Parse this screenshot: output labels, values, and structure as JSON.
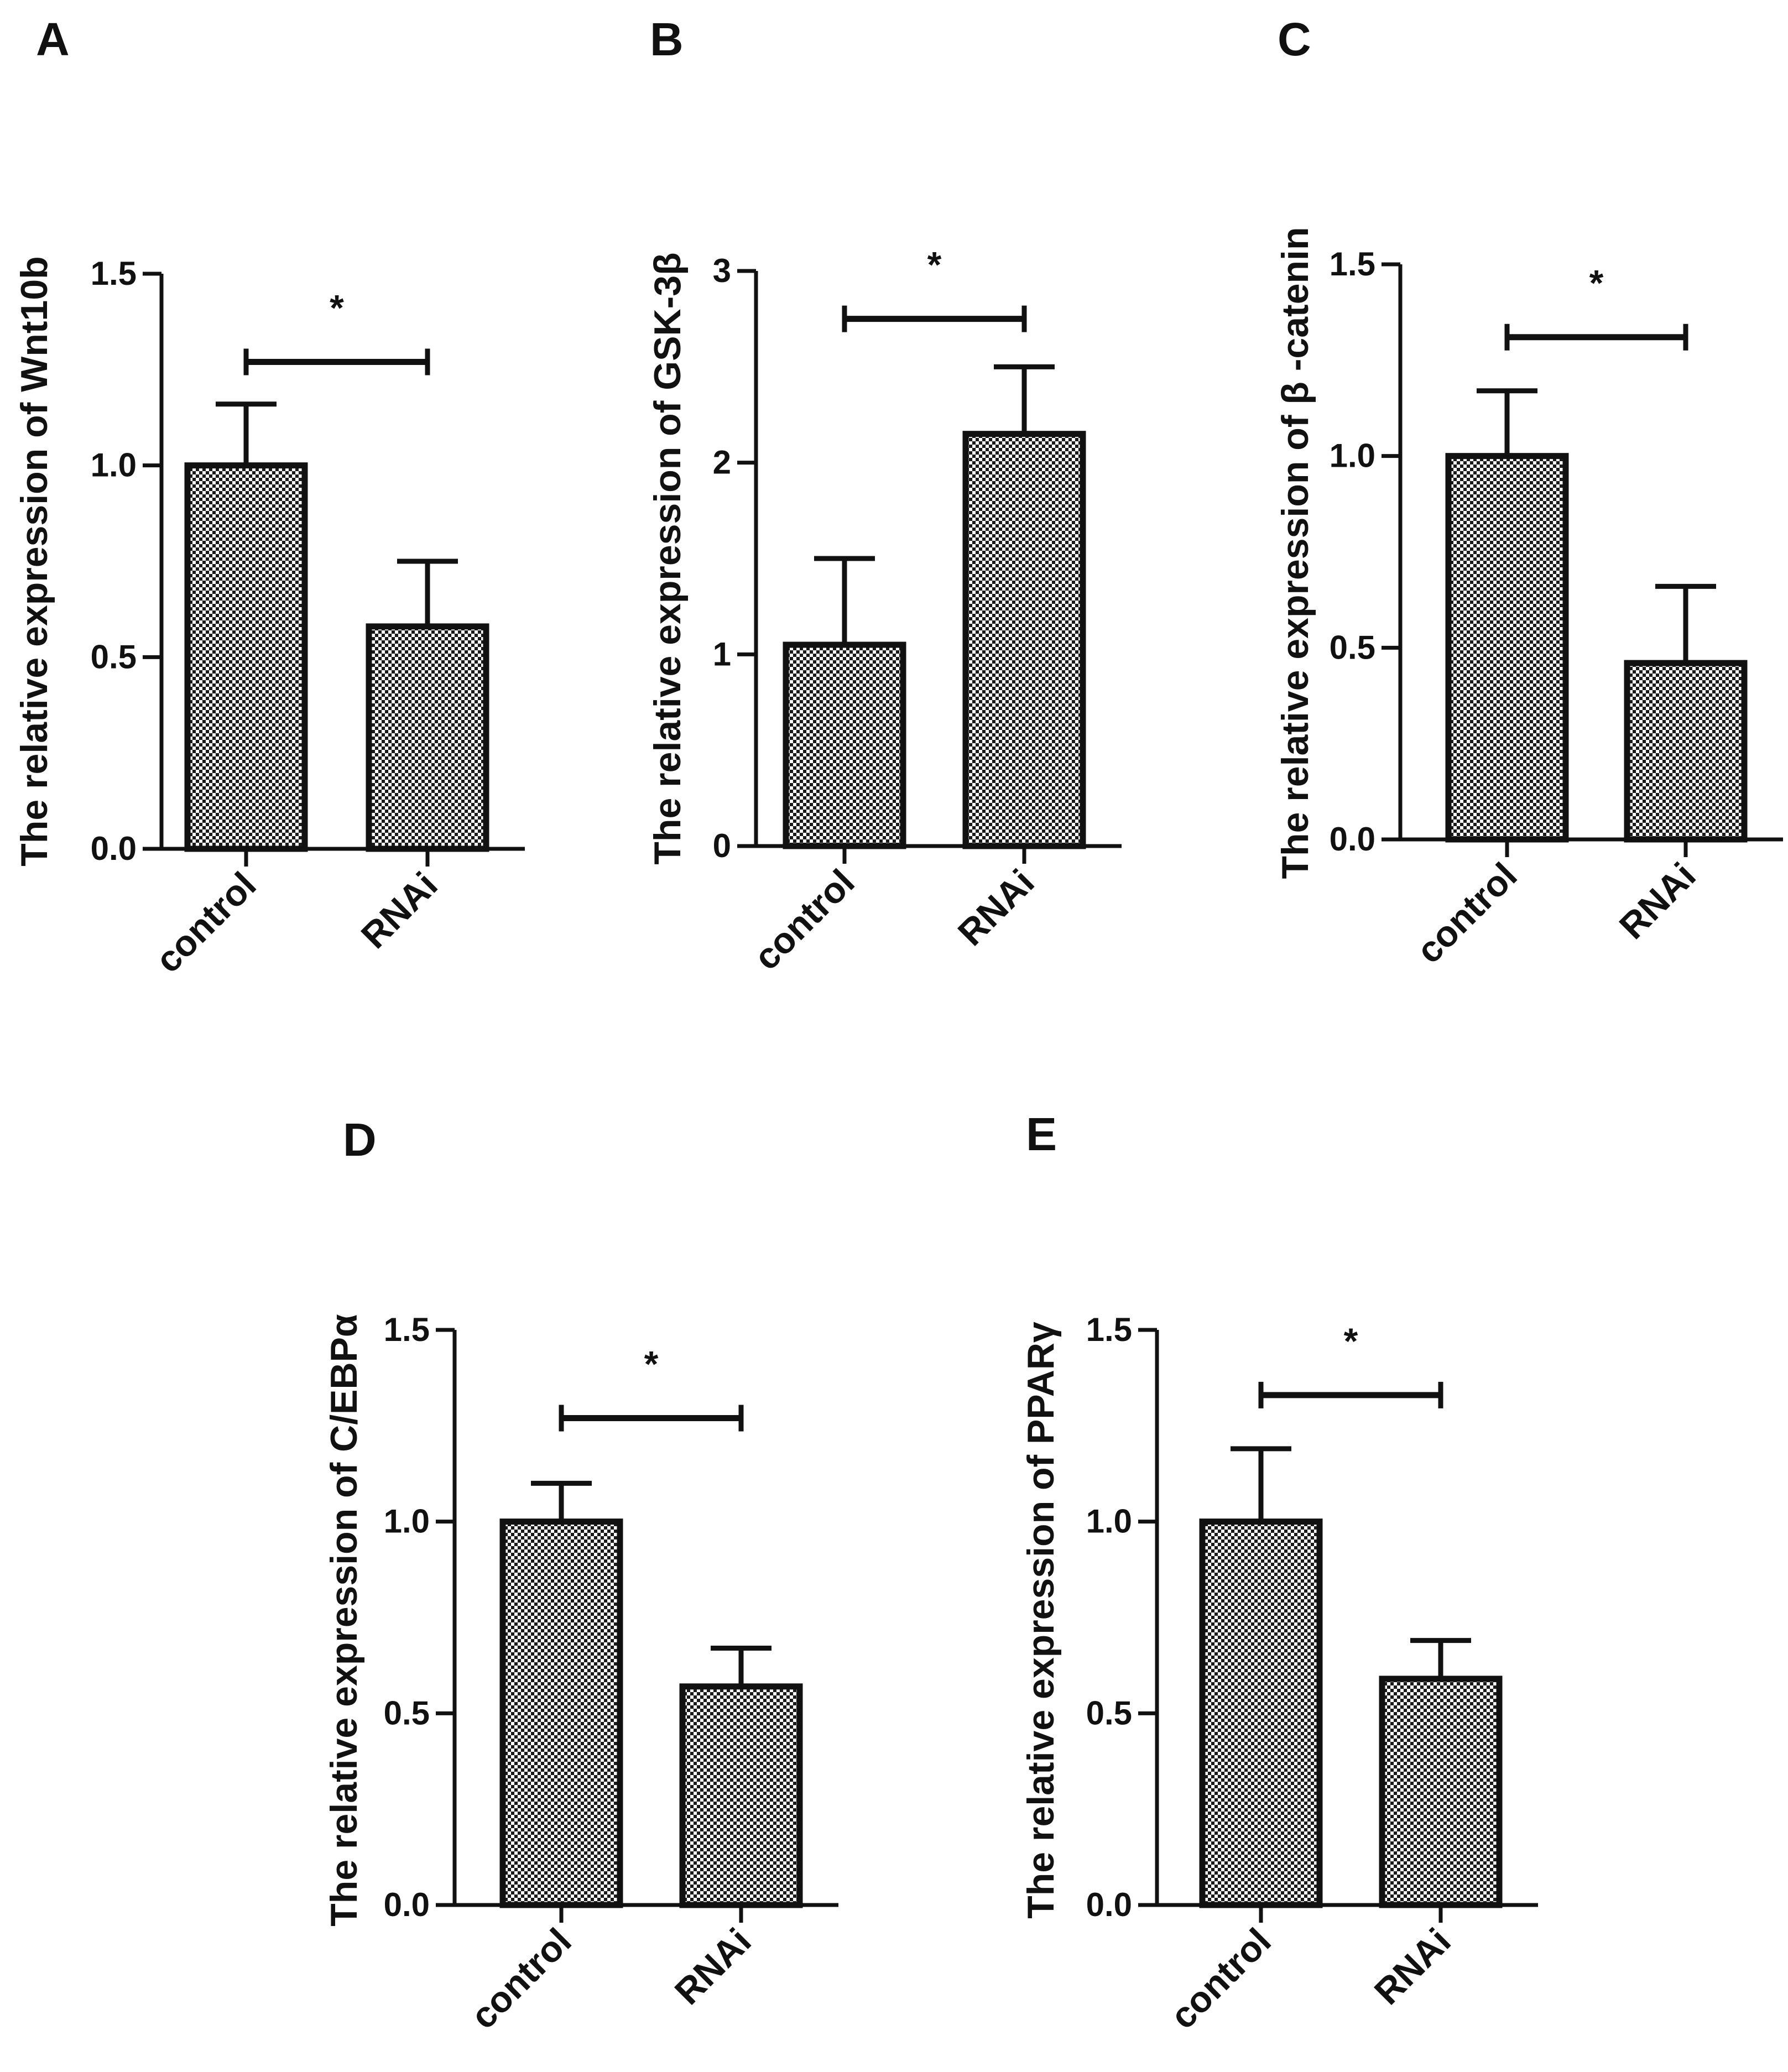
{
  "figure": {
    "panels": [
      "A",
      "B",
      "C",
      "D",
      "E"
    ]
  },
  "chart_data": [
    {
      "panel": "A",
      "type": "bar",
      "title": "",
      "xlabel": "",
      "ylabel": "The relative expression of Wnt10b",
      "categories": [
        "control",
        "RNAi"
      ],
      "values": [
        1.0,
        0.58
      ],
      "errors": [
        0.16,
        0.17
      ],
      "ylim": [
        0,
        1.5
      ],
      "yticks": [
        0.0,
        0.5,
        1.0,
        1.5
      ],
      "ytick_labels": [
        "0.0",
        "0.5",
        "1.0",
        "1.5"
      ],
      "significance": {
        "label": "*",
        "level": 1.27
      }
    },
    {
      "panel": "B",
      "type": "bar",
      "title": "",
      "xlabel": "",
      "ylabel": "The relative expression of GSK-3β",
      "categories": [
        "control",
        "RNAi"
      ],
      "values": [
        1.05,
        2.15
      ],
      "errors": [
        0.45,
        0.35
      ],
      "ylim": [
        0,
        3
      ],
      "yticks": [
        0,
        1,
        2,
        3
      ],
      "ytick_labels": [
        "0",
        "1",
        "2",
        "3"
      ],
      "significance": {
        "label": "*",
        "level": 2.75
      }
    },
    {
      "panel": "C",
      "type": "bar",
      "title": "",
      "xlabel": "",
      "ylabel": "The relative expression of β -catenin",
      "categories": [
        "control",
        "RNAi"
      ],
      "values": [
        1.0,
        0.46
      ],
      "errors": [
        0.17,
        0.2
      ],
      "ylim": [
        0,
        1.5
      ],
      "yticks": [
        0.0,
        0.5,
        1.0,
        1.5
      ],
      "ytick_labels": [
        "0.0",
        "0.5",
        "1.0",
        "1.5"
      ],
      "significance": {
        "label": "*",
        "level": 1.31
      }
    },
    {
      "panel": "D",
      "type": "bar",
      "title": "",
      "xlabel": "",
      "ylabel": "The relative expression of C/EBPα",
      "categories": [
        "control",
        "RNAi"
      ],
      "values": [
        1.0,
        0.57
      ],
      "errors": [
        0.1,
        0.1
      ],
      "ylim": [
        0,
        1.5
      ],
      "yticks": [
        0.0,
        0.5,
        1.0,
        1.5
      ],
      "ytick_labels": [
        "0.0",
        "0.5",
        "1.0",
        "1.5"
      ],
      "significance": {
        "label": "*",
        "level": 1.27
      }
    },
    {
      "panel": "E",
      "type": "bar",
      "title": "",
      "xlabel": "",
      "ylabel": "The relative expression of PPARγ",
      "categories": [
        "control",
        "RNAi"
      ],
      "values": [
        1.0,
        0.59
      ],
      "errors": [
        0.19,
        0.1
      ],
      "ylim": [
        0,
        1.5
      ],
      "yticks": [
        0.0,
        0.5,
        1.0,
        1.5
      ],
      "ytick_labels": [
        "0.0",
        "0.5",
        "1.0",
        "1.5"
      ],
      "significance": {
        "label": "*",
        "level": 1.33
      }
    }
  ]
}
